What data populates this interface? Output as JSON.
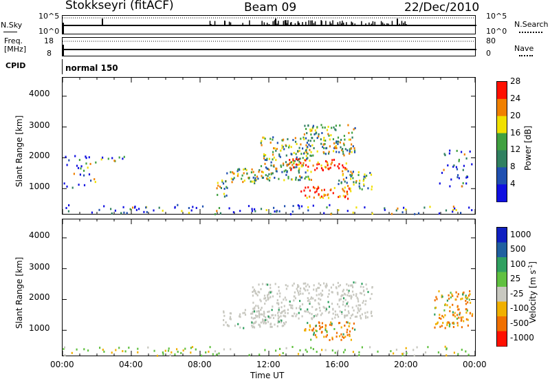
{
  "header": {
    "station": "Stokkseyri (fitACF)",
    "beam": "Beam 09",
    "date": "22/Dec/2010"
  },
  "top_panels": {
    "nsky_label": "N.Sky",
    "nsky_ticks": [
      "10^5",
      "10^0"
    ],
    "nsearch_label": "N.Search",
    "nsearch_ticks": [
      "10^5",
      "10^0"
    ],
    "freq_label": "Freq.",
    "freq_unit": "[MHz]",
    "freq_ticks": [
      "18",
      "8"
    ],
    "nave_label": "Nave",
    "nave_ticks": [
      "80",
      "0"
    ],
    "cpid_label": "CPID",
    "cpid_value": "normal 150"
  },
  "chart_data": [
    {
      "type": "heatmap",
      "name": "Power",
      "xlabel": "",
      "ylabel": "Slant Range [km]",
      "xlim": [
        0,
        24
      ],
      "ylim": [
        180,
        4600
      ],
      "yticks": [
        "1000",
        "2000",
        "3000",
        "4000"
      ],
      "colorbar": {
        "label": "Power [dB]",
        "ticks": [
          "4",
          "8",
          "12",
          "16",
          "20",
          "24",
          "28"
        ],
        "colors": [
          "#1010e0",
          "#2050b0",
          "#308060",
          "#40a040",
          "#f0e000",
          "#f08000",
          "#ff1000"
        ]
      },
      "echo_regions": [
        {
          "t0": 0.0,
          "t1": 23.9,
          "r0": 200,
          "r1": 500,
          "level": "low"
        },
        {
          "t0": 0.0,
          "t1": 1.9,
          "r0": 1000,
          "r1": 2100,
          "level": "low"
        },
        {
          "t0": 2.2,
          "t1": 3.8,
          "r0": 1700,
          "r1": 2100,
          "level": "low"
        },
        {
          "t0": 8.9,
          "t1": 9.6,
          "r0": 700,
          "r1": 1300,
          "level": "mid"
        },
        {
          "t0": 9.5,
          "t1": 12.0,
          "r0": 1200,
          "r1": 1700,
          "level": "mid"
        },
        {
          "t0": 11.5,
          "t1": 14.5,
          "r0": 1300,
          "r1": 2700,
          "level": "mid"
        },
        {
          "t0": 13.0,
          "t1": 16.5,
          "r0": 1600,
          "r1": 2000,
          "level": "high"
        },
        {
          "t0": 14.0,
          "t1": 17.0,
          "r0": 2100,
          "r1": 3100,
          "level": "mid"
        },
        {
          "t0": 13.8,
          "t1": 17.0,
          "r0": 700,
          "r1": 1100,
          "level": "high"
        },
        {
          "t0": 16.0,
          "t1": 18.0,
          "r0": 1000,
          "r1": 1600,
          "level": "mid"
        },
        {
          "t0": 21.8,
          "t1": 23.8,
          "r0": 1100,
          "r1": 2300,
          "level": "low"
        }
      ]
    },
    {
      "type": "heatmap",
      "name": "Velocity",
      "xlabel": "Time UT",
      "ylabel": "Slant Range [km]",
      "xlim": [
        0,
        24
      ],
      "ylim": [
        180,
        4600
      ],
      "xticks": [
        "00:00",
        "04:00",
        "08:00",
        "12:00",
        "16:00",
        "20:00",
        "00:00"
      ],
      "yticks": [
        "1000",
        "2000",
        "3000",
        "4000"
      ],
      "colorbar": {
        "label": "Velocity [m s^-1]",
        "ticks": [
          "1000",
          "500",
          "100",
          "25",
          "-25",
          "-100",
          "-500",
          "-1000"
        ],
        "colors": [
          "#1020c0",
          "#2060a0",
          "#30a060",
          "#60c040",
          "#c8c8c0",
          "#f0b000",
          "#f07000",
          "#ff1000"
        ]
      },
      "echo_regions": [
        {
          "t0": 0.0,
          "t1": 23.9,
          "r0": 200,
          "r1": 500,
          "level": "ground"
        },
        {
          "t0": 9.3,
          "t1": 13.0,
          "r0": 1100,
          "r1": 1700,
          "level": "grey"
        },
        {
          "t0": 11.0,
          "t1": 18.0,
          "r0": 1400,
          "r1": 2600,
          "level": "grey"
        },
        {
          "t0": 14.0,
          "t1": 17.0,
          "r0": 700,
          "r1": 1300,
          "level": "negative"
        },
        {
          "t0": 21.6,
          "t1": 23.8,
          "r0": 1100,
          "r1": 2300,
          "level": "negative"
        }
      ]
    }
  ]
}
